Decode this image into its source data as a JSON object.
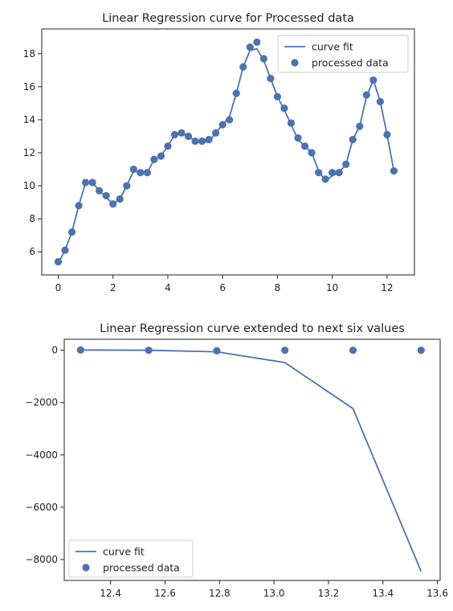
{
  "chart_data": [
    {
      "type": "line",
      "title": "Linear Regression curve for Processed data",
      "xlabel": "",
      "ylabel": "",
      "xlim": [
        -0.6,
        13.0
      ],
      "ylim": [
        4.6,
        19.5
      ],
      "xticks": [
        0,
        2,
        4,
        6,
        8,
        10,
        12
      ],
      "xtick_labels": [
        "0",
        "2",
        "4",
        "6",
        "8",
        "10",
        "12"
      ],
      "yticks": [
        6,
        8,
        10,
        12,
        14,
        16,
        18
      ],
      "ytick_labels": [
        "6",
        "8",
        "10",
        "12",
        "14",
        "16",
        "18"
      ],
      "grid": false,
      "legend": {
        "position": "top-right",
        "entries": [
          "curve fit",
          "processed data"
        ]
      },
      "series": [
        {
          "name": "curve fit",
          "kind": "line",
          "color": "#4c72b0",
          "x": [
            0,
            0.25,
            0.5,
            0.75,
            1.0,
            1.25,
            1.5,
            1.75,
            2.0,
            2.25,
            2.5,
            2.75,
            3.0,
            3.25,
            3.5,
            3.75,
            4.0,
            4.25,
            4.5,
            4.75,
            5.0,
            5.25,
            5.5,
            5.75,
            6.0,
            6.25,
            6.5,
            6.75,
            7.0,
            7.25,
            7.5,
            7.75,
            8.0,
            8.25,
            8.5,
            8.75,
            9.0,
            9.25,
            9.5,
            9.75,
            10.0,
            10.25,
            10.5,
            10.75,
            11.0,
            11.25,
            11.5,
            11.75,
            12.0,
            12.25
          ],
          "y": [
            5.3,
            6.1,
            7.2,
            8.8,
            10.2,
            10.2,
            9.7,
            9.3,
            8.9,
            9.2,
            10.0,
            10.9,
            10.8,
            10.8,
            11.6,
            11.8,
            12.4,
            13.1,
            13.2,
            13.0,
            12.7,
            12.6,
            12.7,
            13.2,
            13.7,
            14.2,
            15.6,
            17.2,
            18.2,
            18.3,
            17.6,
            16.5,
            15.4,
            14.6,
            13.7,
            12.8,
            12.4,
            12.0,
            10.9,
            10.3,
            10.6,
            10.8,
            11.3,
            12.8,
            13.6,
            15.4,
            16.4,
            15.1,
            13.1,
            10.9
          ]
        },
        {
          "name": "processed data",
          "kind": "scatter",
          "color": "#4c72b0",
          "x": [
            0,
            0.25,
            0.5,
            0.75,
            1.0,
            1.25,
            1.5,
            1.75,
            2.0,
            2.25,
            2.5,
            2.75,
            3.0,
            3.25,
            3.5,
            3.75,
            4.0,
            4.25,
            4.5,
            4.75,
            5.0,
            5.25,
            5.5,
            5.75,
            6.0,
            6.25,
            6.5,
            6.75,
            7.0,
            7.25,
            7.5,
            7.75,
            8.0,
            8.25,
            8.5,
            8.75,
            9.0,
            9.25,
            9.5,
            9.75,
            10.0,
            10.25,
            10.5,
            10.75,
            11.0,
            11.25,
            11.5,
            11.75,
            12.0,
            12.25
          ],
          "y": [
            5.4,
            6.1,
            7.2,
            8.8,
            10.2,
            10.2,
            9.7,
            9.4,
            8.9,
            9.2,
            10.0,
            11.0,
            10.8,
            10.8,
            11.6,
            11.8,
            12.4,
            13.1,
            13.2,
            13.0,
            12.7,
            12.7,
            12.8,
            13.2,
            13.7,
            14.0,
            15.6,
            17.2,
            18.4,
            18.7,
            17.7,
            16.5,
            15.4,
            14.7,
            13.8,
            12.9,
            12.4,
            12.0,
            10.8,
            10.4,
            10.8,
            10.8,
            11.3,
            12.8,
            13.6,
            15.5,
            16.4,
            15.1,
            13.1,
            10.9
          ]
        }
      ]
    },
    {
      "type": "line",
      "title": "Linear Regression curve extended to next six values",
      "xlabel": "",
      "ylabel": "",
      "xlim": [
        12.23,
        13.61
      ],
      "ylim": [
        -8800,
        420
      ],
      "xticks": [
        12.4,
        12.6,
        12.8,
        13.0,
        13.2,
        13.4,
        13.6
      ],
      "xtick_labels": [
        "12.4",
        "12.6",
        "12.8",
        "13.0",
        "13.2",
        "13.4",
        "13.6"
      ],
      "yticks": [
        0,
        -2000,
        -4000,
        -6000,
        -8000
      ],
      "ytick_labels": [
        "0",
        "−2000",
        "−4000",
        "−6000",
        "−8000"
      ],
      "grid": false,
      "legend": {
        "position": "bottom-left",
        "entries": [
          "curve fit",
          "processed data"
        ]
      },
      "series": [
        {
          "name": "curve fit",
          "kind": "line",
          "color": "#4c72b0",
          "x": [
            12.29,
            12.54,
            12.79,
            13.04,
            13.29,
            13.54
          ],
          "y": [
            10,
            0,
            -60,
            -470,
            -2230,
            -8450
          ]
        },
        {
          "name": "processed data",
          "kind": "scatter",
          "color": "#4c72b0",
          "x": [
            12.29,
            12.54,
            12.79,
            13.04,
            13.29,
            13.54
          ],
          "y": [
            10,
            0,
            -20,
            0,
            0,
            0
          ]
        }
      ]
    }
  ]
}
